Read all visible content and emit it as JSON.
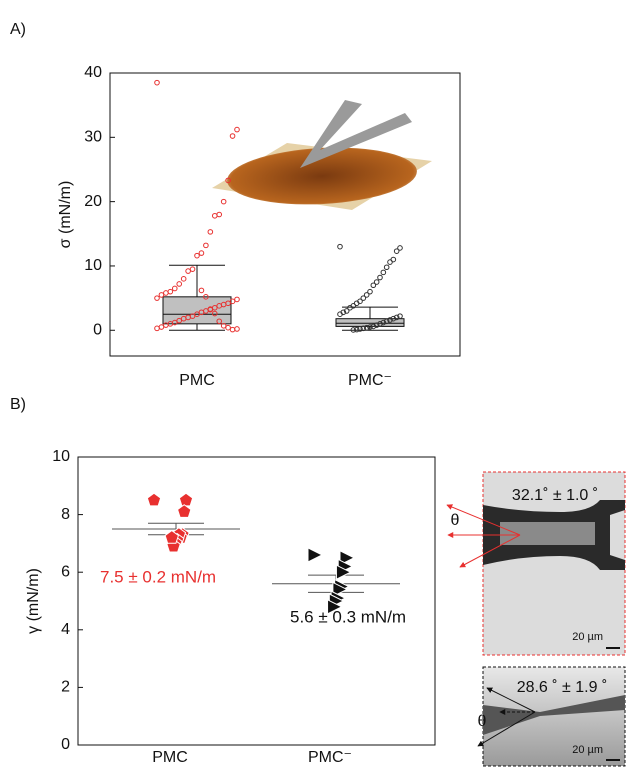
{
  "chart_data": [
    {
      "type": "box",
      "panel": "A)",
      "ylabel": "σ (mN/m)",
      "categories": [
        "PMC",
        "PMC⁻"
      ],
      "ylim": [
        -4,
        40
      ],
      "yticks": [
        0,
        10,
        20,
        30,
        40
      ],
      "box_color": "#c0c0c0",
      "boxes": [
        {
          "whisker_low": 0,
          "q1": 1.0,
          "median": 2.5,
          "q3": 5.2,
          "whisker_high": 10.1
        },
        {
          "whisker_low": 0,
          "q1": 0.6,
          "median": 1.1,
          "q3": 1.8,
          "whisker_high": 3.6
        }
      ],
      "series": [
        {
          "color": "#e8302f",
          "values": [
            38.5,
            31.2,
            30.2,
            23.3,
            20.0,
            18.0,
            17.8,
            15.3,
            13.2,
            12.0,
            11.6,
            9.5,
            9.2,
            8.0,
            7.2,
            6.5,
            6.0,
            5.8,
            5.5,
            5.0,
            4.8,
            4.5,
            4.2,
            4.0,
            3.8,
            3.5,
            3.2,
            3.0,
            2.8,
            2.5,
            2.2,
            2.0,
            1.8,
            1.5,
            1.2,
            1.0,
            0.8,
            0.5,
            0.3,
            0.2,
            0.1,
            0.4,
            0.7,
            1.4,
            2.6,
            3.3,
            5.2,
            6.2
          ]
        },
        {
          "color": "#333333",
          "values": [
            13.0,
            12.8,
            12.3,
            11.0,
            10.6,
            9.8,
            9.0,
            8.2,
            7.5,
            7.0,
            6.0,
            5.5,
            5.0,
            4.5,
            4.2,
            3.8,
            3.5,
            3.0,
            2.8,
            2.5,
            2.2,
            2.0,
            1.8,
            1.6,
            1.4,
            1.2,
            1.0,
            0.8,
            0.6,
            0.5,
            0.4,
            0.3,
            0.2,
            0.1,
            0.05
          ]
        }
      ]
    },
    {
      "type": "scatter",
      "panel": "B)",
      "ylabel": "γ (mN/m)",
      "categories": [
        "PMC",
        "PMC⁻"
      ],
      "ylim": [
        0,
        10
      ],
      "yticks": [
        0,
        2,
        4,
        6,
        8,
        10
      ],
      "series": [
        {
          "color": "#e8302f",
          "marker": "pentagon",
          "values": [
            8.5,
            8.5,
            8.1,
            7.3,
            7.2,
            7.3,
            7.1,
            7.0,
            6.9,
            7.2
          ],
          "mean": 7.5,
          "error": 0.2,
          "label": "7.5 ± 0.2 mN/m"
        },
        {
          "color": "#111111",
          "marker": "triangle",
          "values": [
            6.6,
            6.5,
            6.2,
            6.0,
            5.5,
            5.4,
            5.1,
            5.0,
            4.8
          ],
          "mean": 5.6,
          "error": 0.3,
          "label": "5.6 ± 0.3 mN/m"
        }
      ]
    }
  ],
  "images": [
    {
      "angle": "32.1˚ ± 1.0 ˚",
      "theta": "θ",
      "scale": "20 µm"
    },
    {
      "angle": "28.6 ˚ ± 1.9 ˚",
      "theta": "θ",
      "scale": "20 µm"
    }
  ]
}
